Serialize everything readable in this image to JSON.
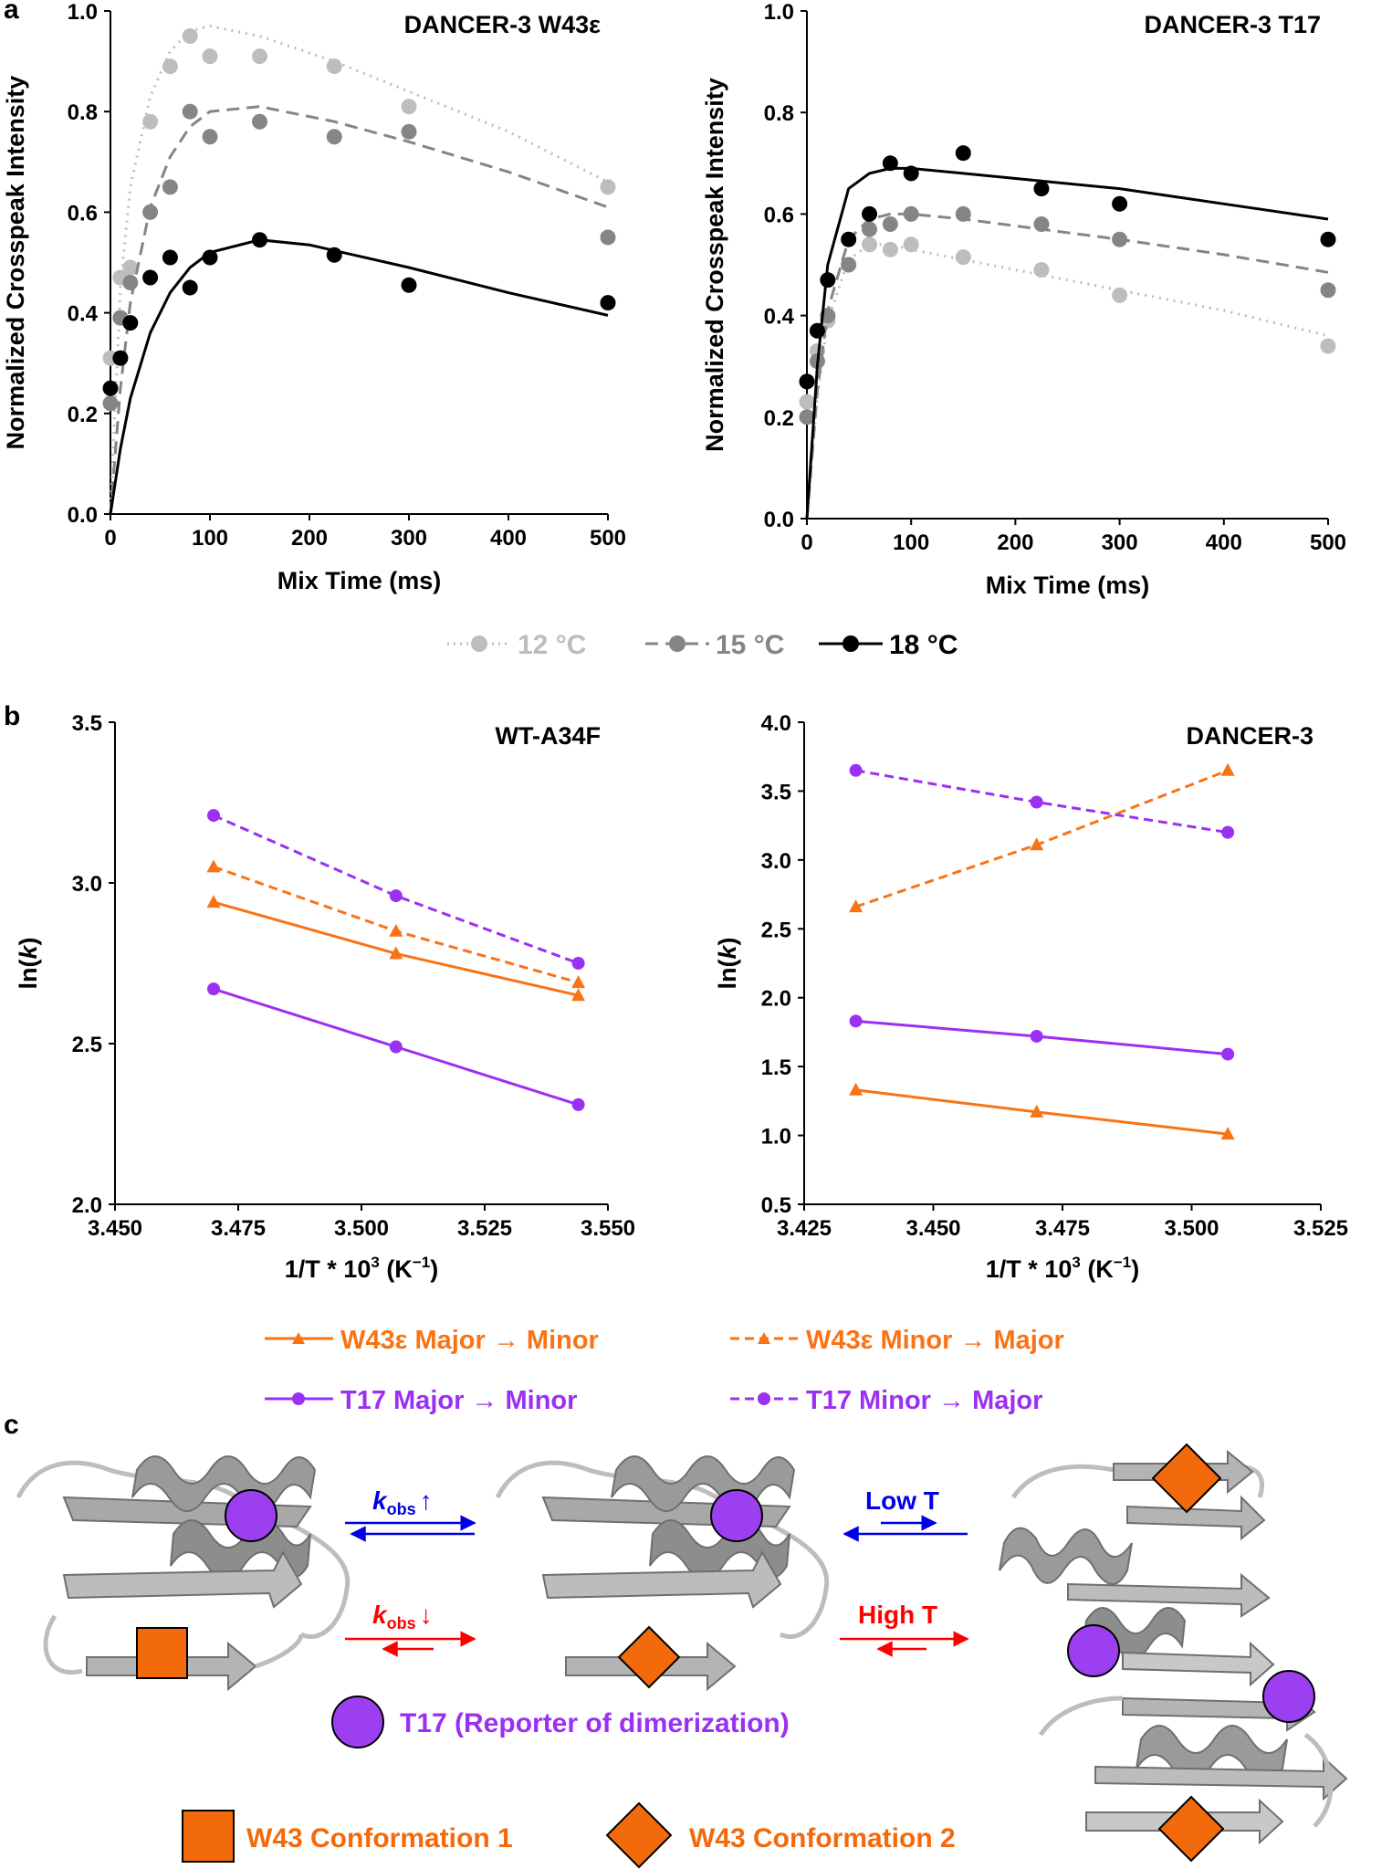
{
  "panel_labels": {
    "a": "a",
    "b": "b",
    "c": "c"
  },
  "colors": {
    "c12": "#bdbdbd",
    "c15": "#858585",
    "c18": "#000000",
    "orange": "#f97316",
    "purple": "#9b30f2",
    "blue": "#0000e6",
    "red": "#ff0000",
    "shape_fill": "#f26a0b",
    "circle_fill": "#9b3ff0",
    "protein": "#a8a8a8"
  },
  "chart_data": [
    {
      "id": "a1",
      "type": "scatter-with-fit",
      "title": "DANCER-3 W43ε",
      "xlabel": "Mix Time (ms)",
      "ylabel": "Normalized Crosspeak Intensity",
      "xlim": [
        0,
        500
      ],
      "ylim": [
        0,
        1
      ],
      "xticks": [
        "0",
        "100",
        "200",
        "300",
        "400",
        "500"
      ],
      "yticks": [
        "0.0",
        "0.2",
        "0.4",
        "0.6",
        "0.8",
        "1.0"
      ],
      "series": [
        {
          "name": "12 °C",
          "style": "dotted",
          "points": [
            [
              0,
              0.31
            ],
            [
              10,
              0.47
            ],
            [
              20,
              0.49
            ],
            [
              40,
              0.78
            ],
            [
              60,
              0.89
            ],
            [
              80,
              0.95
            ],
            [
              100,
              0.91
            ],
            [
              150,
              0.91
            ],
            [
              225,
              0.89
            ],
            [
              300,
              0.81
            ],
            [
              500,
              0.65
            ]
          ],
          "fit": [
            [
              0,
              0
            ],
            [
              10,
              0.45
            ],
            [
              20,
              0.65
            ],
            [
              40,
              0.83
            ],
            [
              60,
              0.92
            ],
            [
              80,
              0.96
            ],
            [
              100,
              0.97
            ],
            [
              150,
              0.95
            ],
            [
              225,
              0.9
            ],
            [
              300,
              0.84
            ],
            [
              400,
              0.76
            ],
            [
              500,
              0.66
            ]
          ]
        },
        {
          "name": "15 °C",
          "style": "dashed",
          "points": [
            [
              0,
              0.22
            ],
            [
              10,
              0.39
            ],
            [
              20,
              0.46
            ],
            [
              40,
              0.6
            ],
            [
              60,
              0.65
            ],
            [
              80,
              0.8
            ],
            [
              100,
              0.75
            ],
            [
              150,
              0.78
            ],
            [
              225,
              0.75
            ],
            [
              300,
              0.76
            ],
            [
              500,
              0.55
            ]
          ],
          "fit": [
            [
              0,
              0
            ],
            [
              10,
              0.25
            ],
            [
              20,
              0.42
            ],
            [
              40,
              0.61
            ],
            [
              60,
              0.71
            ],
            [
              80,
              0.77
            ],
            [
              100,
              0.8
            ],
            [
              150,
              0.81
            ],
            [
              225,
              0.78
            ],
            [
              300,
              0.74
            ],
            [
              400,
              0.68
            ],
            [
              500,
              0.61
            ]
          ]
        },
        {
          "name": "18 °C",
          "style": "solid",
          "points": [
            [
              0,
              0.25
            ],
            [
              10,
              0.31
            ],
            [
              20,
              0.38
            ],
            [
              40,
              0.47
            ],
            [
              60,
              0.51
            ],
            [
              80,
              0.45
            ],
            [
              100,
              0.51
            ],
            [
              150,
              0.545
            ],
            [
              225,
              0.515
            ],
            [
              300,
              0.455
            ],
            [
              500,
              0.42
            ]
          ],
          "fit": [
            [
              0,
              0
            ],
            [
              10,
              0.13
            ],
            [
              20,
              0.23
            ],
            [
              40,
              0.36
            ],
            [
              60,
              0.44
            ],
            [
              80,
              0.49
            ],
            [
              100,
              0.52
            ],
            [
              150,
              0.545
            ],
            [
              200,
              0.535
            ],
            [
              300,
              0.49
            ],
            [
              400,
              0.44
            ],
            [
              500,
              0.395
            ]
          ]
        }
      ]
    },
    {
      "id": "a2",
      "type": "scatter-with-fit",
      "title": "DANCER-3 T17",
      "xlabel": "Mix Time (ms)",
      "ylabel": "Normalized Crosspeak Intensity",
      "xlim": [
        0,
        500
      ],
      "ylim": [
        0,
        1
      ],
      "xticks": [
        "0",
        "100",
        "200",
        "300",
        "400",
        "500"
      ],
      "yticks": [
        "0.0",
        "0.2",
        "0.4",
        "0.6",
        "0.8",
        "1.0"
      ],
      "series": [
        {
          "name": "12 °C",
          "style": "dotted",
          "points": [
            [
              0,
              0.23
            ],
            [
              10,
              0.33
            ],
            [
              20,
              0.39
            ],
            [
              40,
              0.5
            ],
            [
              60,
              0.54
            ],
            [
              80,
              0.53
            ],
            [
              100,
              0.54
            ],
            [
              150,
              0.515
            ],
            [
              225,
              0.49
            ],
            [
              300,
              0.44
            ],
            [
              500,
              0.34
            ]
          ],
          "fit": [
            [
              0,
              0
            ],
            [
              10,
              0.24
            ],
            [
              20,
              0.39
            ],
            [
              40,
              0.51
            ],
            [
              60,
              0.54
            ],
            [
              80,
              0.54
            ],
            [
              100,
              0.53
            ],
            [
              150,
              0.51
            ],
            [
              225,
              0.48
            ],
            [
              300,
              0.45
            ],
            [
              400,
              0.41
            ],
            [
              500,
              0.36
            ]
          ]
        },
        {
          "name": "15 °C",
          "style": "dashed",
          "points": [
            [
              0,
              0.2
            ],
            [
              10,
              0.31
            ],
            [
              20,
              0.4
            ],
            [
              40,
              0.5
            ],
            [
              60,
              0.57
            ],
            [
              80,
              0.58
            ],
            [
              100,
              0.6
            ],
            [
              150,
              0.6
            ],
            [
              225,
              0.58
            ],
            [
              300,
              0.55
            ],
            [
              500,
              0.45
            ]
          ],
          "fit": [
            [
              0,
              0
            ],
            [
              10,
              0.25
            ],
            [
              20,
              0.41
            ],
            [
              40,
              0.55
            ],
            [
              60,
              0.59
            ],
            [
              80,
              0.6
            ],
            [
              100,
              0.6
            ],
            [
              150,
              0.59
            ],
            [
              225,
              0.57
            ],
            [
              300,
              0.55
            ],
            [
              400,
              0.52
            ],
            [
              500,
              0.485
            ]
          ]
        },
        {
          "name": "18 °C",
          "style": "solid",
          "points": [
            [
              0,
              0.27
            ],
            [
              10,
              0.37
            ],
            [
              20,
              0.47
            ],
            [
              40,
              0.55
            ],
            [
              60,
              0.6
            ],
            [
              80,
              0.7
            ],
            [
              100,
              0.68
            ],
            [
              150,
              0.72
            ],
            [
              225,
              0.65
            ],
            [
              300,
              0.62
            ],
            [
              500,
              0.55
            ]
          ],
          "fit": [
            [
              0,
              0
            ],
            [
              10,
              0.3
            ],
            [
              20,
              0.5
            ],
            [
              40,
              0.65
            ],
            [
              60,
              0.68
            ],
            [
              80,
              0.69
            ],
            [
              100,
              0.69
            ],
            [
              150,
              0.68
            ],
            [
              225,
              0.665
            ],
            [
              300,
              0.65
            ],
            [
              400,
              0.62
            ],
            [
              500,
              0.59
            ]
          ]
        }
      ]
    },
    {
      "id": "b1",
      "type": "line",
      "title": "WT-A34F",
      "xlabel_main": "1/T * 10",
      "xlabel_sup": "3",
      "xlabel_unit": " (K",
      "xlabel_unit_sup": "−1",
      "xlabel_close": ")",
      "ylabel_main": "ln(",
      "ylabel_italic": "k",
      "ylabel_close": ")",
      "xlim": [
        3.45,
        3.55
      ],
      "ylim": [
        2.0,
        3.5
      ],
      "xticks": [
        "3.450",
        "3.475",
        "3.500",
        "3.525",
        "3.550"
      ],
      "yticks": [
        "2.0",
        "2.5",
        "3.0",
        "3.5"
      ],
      "series": [
        {
          "name": "W43ε Major → Minor",
          "x": [
            3.47,
            3.507,
            3.544
          ],
          "values": [
            2.94,
            2.78,
            2.65
          ]
        },
        {
          "name": "W43ε Minor → Major",
          "x": [
            3.47,
            3.507,
            3.544
          ],
          "values": [
            3.05,
            2.85,
            2.69
          ]
        },
        {
          "name": "T17 Major → Minor",
          "x": [
            3.47,
            3.507,
            3.544
          ],
          "values": [
            2.67,
            2.49,
            2.31
          ]
        },
        {
          "name": "T17 Minor → Major",
          "x": [
            3.47,
            3.507,
            3.544
          ],
          "values": [
            3.21,
            2.96,
            2.75
          ]
        }
      ]
    },
    {
      "id": "b2",
      "type": "line",
      "title": "DANCER-3",
      "xlabel_main": "1/T * 10",
      "xlabel_sup": "3",
      "xlabel_unit": " (K",
      "xlabel_unit_sup": "−1",
      "xlabel_close": ")",
      "ylabel_main": "ln(",
      "ylabel_italic": "k",
      "ylabel_close": ")",
      "xlim": [
        3.425,
        3.525
      ],
      "ylim": [
        0.5,
        4.0
      ],
      "xticks": [
        "3.425",
        "3.450",
        "3.475",
        "3.500",
        "3.525"
      ],
      "yticks": [
        "0.5",
        "1.0",
        "1.5",
        "2.0",
        "2.5",
        "3.0",
        "3.5",
        "4.0"
      ],
      "series": [
        {
          "name": "W43ε Major → Minor",
          "x": [
            3.435,
            3.47,
            3.507
          ],
          "values": [
            1.33,
            1.17,
            1.01
          ]
        },
        {
          "name": "W43ε Minor → Major",
          "x": [
            3.435,
            3.47,
            3.507
          ],
          "values": [
            2.66,
            3.11,
            3.65
          ]
        },
        {
          "name": "T17 Major → Minor",
          "x": [
            3.435,
            3.47,
            3.507
          ],
          "values": [
            1.83,
            1.72,
            1.59
          ]
        },
        {
          "name": "T17 Minor → Major",
          "x": [
            3.435,
            3.47,
            3.507
          ],
          "values": [
            3.65,
            3.42,
            3.2
          ]
        }
      ]
    }
  ],
  "legend_a": [
    "12 °C",
    "15 °C",
    "18 °C"
  ],
  "legend_b": [
    "W43ε Major → Minor",
    "W43ε Minor → Major",
    "T17 Major → Minor",
    "T17 Minor → Major"
  ],
  "panel_c": {
    "kobs_up": {
      "k": "k",
      "sub": "obs",
      "arrow": "↑"
    },
    "kobs_down": {
      "k": "k",
      "sub": "obs",
      "arrow": "↓"
    },
    "low_t": "Low T",
    "high_t": "High T",
    "legend_t17": "T17 (Reporter of dimerization)",
    "legend_conf1": "W43 Conformation 1",
    "legend_conf2": "W43 Conformation 2"
  }
}
